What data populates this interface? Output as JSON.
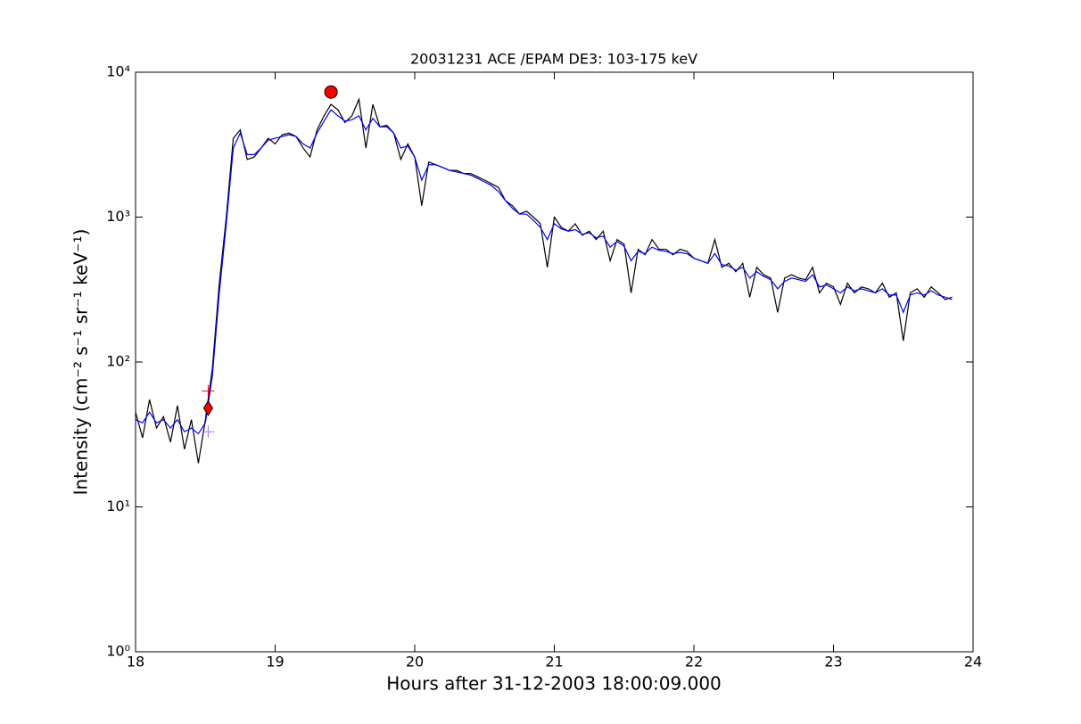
{
  "chart_data": {
    "type": "line",
    "title": "20031231 ACE /EPAM DE3: 103-175 keV",
    "x_label": "Hours after 31-12-2003 18:00:09.000",
    "y_label": "Intensity (cm⁻² s⁻¹ sr⁻¹ keV⁻¹)",
    "yscale": "log",
    "xlim": [
      18,
      24
    ],
    "xticks": [
      18,
      19,
      20,
      21,
      22,
      23,
      24
    ],
    "ylim": [
      1,
      10000
    ],
    "yticks": [
      {
        "value": 1,
        "label": "10⁰"
      },
      {
        "value": 10,
        "label": "10¹"
      },
      {
        "value": 100,
        "label": "10²"
      },
      {
        "value": 1000,
        "label": "10³"
      },
      {
        "value": 10000,
        "label": "10⁴"
      }
    ],
    "x": [
      18,
      18.05,
      18.1,
      18.15,
      18.2,
      18.25,
      18.3,
      18.35,
      18.4,
      18.45,
      18.5,
      18.55,
      18.6,
      18.65,
      18.7,
      18.75,
      18.8,
      18.85,
      18.9,
      18.95,
      19,
      19.05,
      19.1,
      19.15,
      19.2,
      19.25,
      19.3,
      19.35,
      19.4,
      19.45,
      19.5,
      19.55,
      19.6,
      19.65,
      19.7,
      19.75,
      19.8,
      19.85,
      19.9,
      19.95,
      20,
      20.05,
      20.1,
      20.15,
      20.2,
      20.25,
      20.3,
      20.35,
      20.4,
      20.45,
      20.5,
      20.55,
      20.6,
      20.65,
      20.7,
      20.75,
      20.8,
      20.85,
      20.9,
      20.95,
      21,
      21.05,
      21.1,
      21.15,
      21.2,
      21.25,
      21.3,
      21.35,
      21.4,
      21.45,
      21.5,
      21.55,
      21.6,
      21.65,
      21.7,
      21.75,
      21.8,
      21.85,
      21.9,
      21.95,
      22,
      22.05,
      22.1,
      22.15,
      22.2,
      22.25,
      22.3,
      22.35,
      22.4,
      22.45,
      22.5,
      22.55,
      22.6,
      22.65,
      22.7,
      22.75,
      22.8,
      22.85,
      22.9,
      22.95,
      23,
      23.05,
      23.1,
      23.15,
      23.2,
      23.25,
      23.3,
      23.35,
      23.4,
      23.45,
      23.5,
      23.55,
      23.6,
      23.65,
      23.7,
      23.75,
      23.8,
      23.85
    ],
    "series": [
      {
        "color": "#000000",
        "values": [
          45,
          30,
          55,
          35,
          42,
          28,
          50,
          25,
          40,
          20,
          40,
          90,
          350,
          1000,
          3500,
          4000,
          2500,
          2600,
          3000,
          3500,
          3200,
          3700,
          3800,
          3600,
          3000,
          2600,
          4000,
          5000,
          6000,
          5500,
          4500,
          5000,
          6500,
          3000,
          6000,
          4200,
          4300,
          3800,
          2500,
          3200,
          2600,
          1200,
          2400,
          2300,
          2200,
          2100,
          2100,
          2000,
          2000,
          1900,
          1800,
          1700,
          1600,
          1300,
          1200,
          1050,
          1100,
          1000,
          900,
          450,
          1000,
          850,
          800,
          900,
          750,
          800,
          700,
          800,
          500,
          700,
          650,
          300,
          600,
          550,
          700,
          600,
          600,
          550,
          600,
          580,
          520,
          500,
          480,
          700,
          450,
          480,
          420,
          480,
          280,
          450,
          400,
          380,
          220,
          380,
          400,
          380,
          370,
          450,
          300,
          350,
          330,
          250,
          350,
          300,
          330,
          320,
          300,
          350,
          280,
          300,
          140,
          300,
          320,
          280,
          330,
          300,
          270,
          280
        ]
      },
      {
        "color": "#0000ff",
        "values": [
          40,
          38,
          45,
          38,
          40,
          35,
          40,
          33,
          35,
          32,
          38,
          80,
          300,
          900,
          3000,
          3800,
          2700,
          2700,
          3000,
          3400,
          3500,
          3600,
          3700,
          3600,
          3200,
          3000,
          3800,
          4600,
          5500,
          5000,
          4600,
          4700,
          5000,
          4000,
          4800,
          4200,
          4200,
          3800,
          3000,
          3100,
          2600,
          1800,
          2300,
          2300,
          2200,
          2100,
          2050,
          2000,
          1950,
          1850,
          1750,
          1650,
          1500,
          1300,
          1150,
          1050,
          1050,
          950,
          850,
          700,
          900,
          830,
          800,
          820,
          760,
          780,
          720,
          740,
          620,
          680,
          630,
          500,
          580,
          560,
          620,
          590,
          580,
          560,
          570,
          560,
          520,
          500,
          480,
          560,
          470,
          460,
          430,
          450,
          380,
          420,
          390,
          370,
          320,
          360,
          380,
          370,
          360,
          400,
          330,
          340,
          320,
          300,
          330,
          310,
          320,
          310,
          300,
          320,
          290,
          290,
          220,
          290,
          300,
          290,
          310,
          290,
          280,
          270
        ]
      }
    ],
    "points": [
      {
        "x": 19.4,
        "y": 7300,
        "marker": "circle",
        "color": "#ff0000"
      },
      {
        "x": 18.52,
        "y": 48,
        "marker": "diamond",
        "color": "#ff0000"
      },
      {
        "x": 18.52,
        "y": 63,
        "marker": "plus",
        "color": "#ff0000"
      },
      {
        "x": 18.52,
        "y": 33,
        "marker": "plus",
        "color": "#8080ff"
      }
    ]
  }
}
